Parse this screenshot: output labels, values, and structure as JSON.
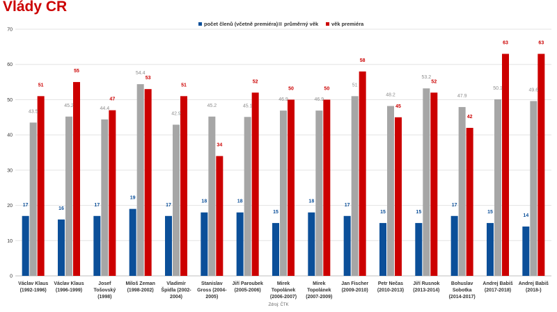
{
  "page": {
    "title": "Vlády ČR",
    "source": "Zdroj: ČTK"
  },
  "colors": {
    "title": "#cc0000",
    "series_count": "#0b4f99",
    "series_avg": "#a6a6a6",
    "series_pm": "#cc0000",
    "grid": "#e3e3e3",
    "axis_text": "#333333"
  },
  "chart_data": {
    "type": "bar",
    "title": "Vlády ČR",
    "xlabel": "",
    "ylabel": "",
    "ylim": [
      0,
      70
    ],
    "yticks": [
      0,
      10,
      20,
      30,
      40,
      50,
      60,
      70
    ],
    "grid": true,
    "legend_position": "top-center",
    "categories": [
      [
        "Václav Klaus",
        "(1992-1996)"
      ],
      [
        "Václav Klaus",
        "(1996-1999)"
      ],
      [
        "Josef",
        "Tošovský",
        "(1998)"
      ],
      [
        "Miloš Zeman",
        "(1998-2002)"
      ],
      [
        "Vladimír",
        "Špidla (2002-",
        "2004)"
      ],
      [
        "Stanislav",
        "Gross (2004-",
        "2005)"
      ],
      [
        "Jiří Paroubek",
        "(2005-2006)"
      ],
      [
        "Mirek",
        "Topolánek",
        "(2006-2007)"
      ],
      [
        "Mirek",
        "Topolánek",
        "(2007-2009)"
      ],
      [
        "Jan Fischer",
        "(2009-2010)"
      ],
      [
        "Petr Nečas",
        "(2010-2013)"
      ],
      [
        "Jiří Rusnok",
        "(2013-2014)"
      ],
      [
        "Bohuslav",
        "Sobotka",
        "(2014-2017)"
      ],
      [
        "Andrej Babiš",
        "(2017-2018)"
      ],
      [
        "Andrej Babiš",
        "(2018-)"
      ]
    ],
    "series": [
      {
        "name": "počet členů (včetně premiéra)",
        "color": "#0b4f99",
        "label_color": "#0b4f99",
        "values": [
          17,
          16,
          17,
          19,
          17,
          18,
          18,
          15,
          18,
          17,
          15,
          15,
          17,
          15,
          14
        ],
        "labels": [
          "17",
          "16",
          "17",
          "19",
          "17",
          "18",
          "18",
          "15",
          "18",
          "17",
          "15",
          "15",
          "17",
          "15",
          "14"
        ]
      },
      {
        "name": "průměrný věk",
        "color": "#a6a6a6",
        "label_color": "#8c8c8c",
        "values": [
          43.5,
          45.2,
          44.4,
          54.4,
          42.9,
          45.2,
          45.1,
          46.9,
          46.9,
          51.0,
          48.2,
          53.2,
          47.9,
          50.1,
          49.6
        ],
        "labels": [
          "43.5",
          "45.2",
          "44.4",
          "54.4",
          "42.9",
          "45.2",
          "45.1",
          "46.9",
          "46.9",
          "51",
          "48.2",
          "53.2",
          "47.9",
          "50.1",
          "49.6"
        ]
      },
      {
        "name": "věk premiéra",
        "color": "#cc0000",
        "label_color": "#cc0000",
        "values": [
          51,
          55,
          47,
          53,
          51,
          34,
          52,
          50,
          50,
          58,
          45,
          52,
          42,
          63,
          63
        ],
        "labels": [
          "51",
          "55",
          "47",
          "53",
          "51",
          "34",
          "52",
          "50",
          "50",
          "58",
          "45",
          "52",
          "42",
          "63",
          "63"
        ]
      }
    ]
  }
}
